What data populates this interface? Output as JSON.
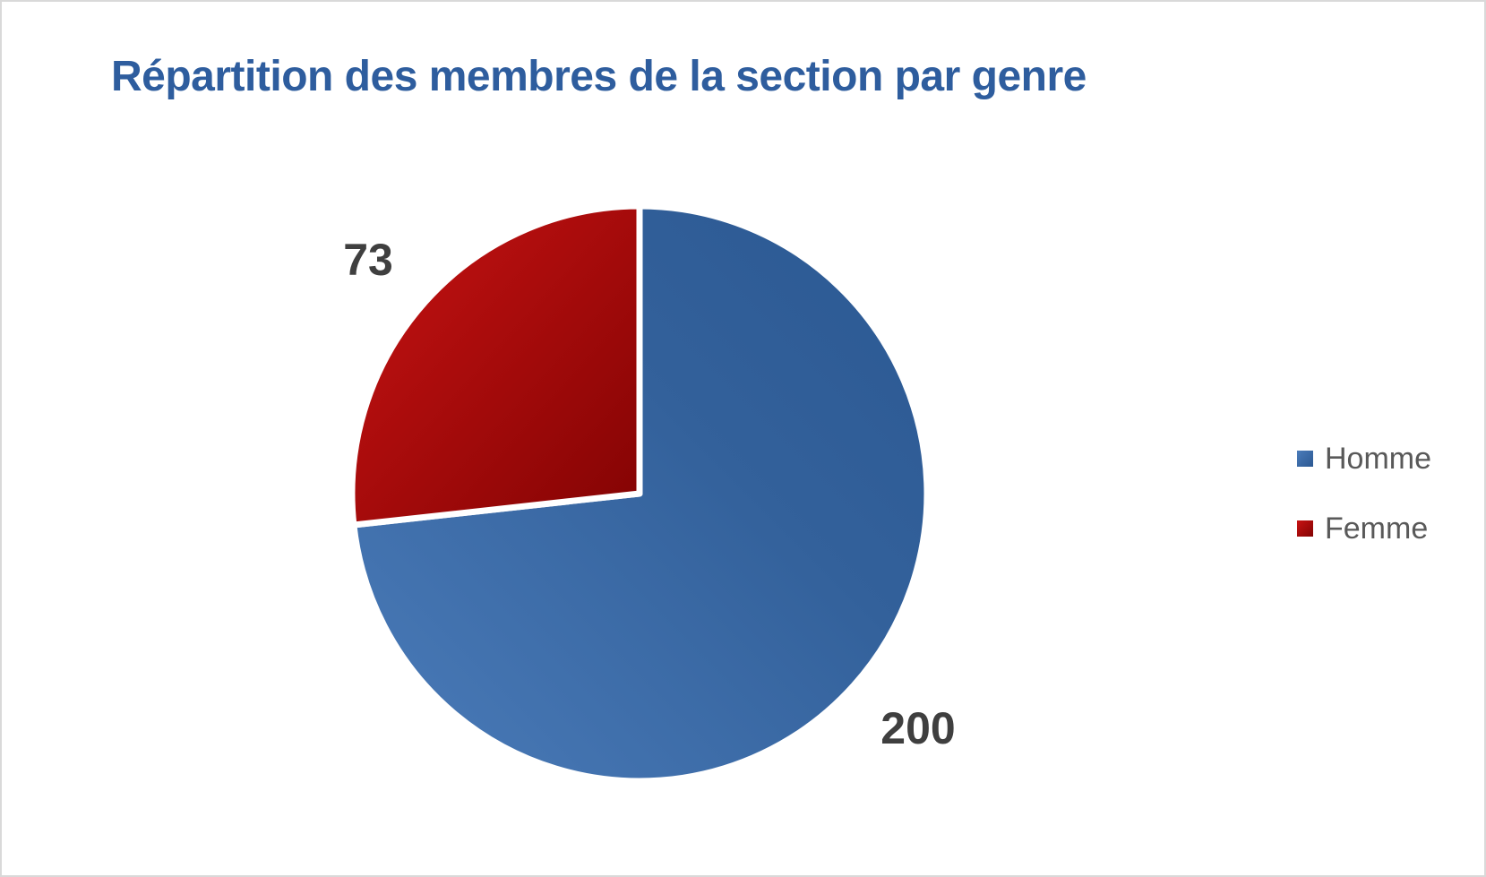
{
  "frame": {
    "background": "#FFFFFF",
    "border_color": "#D9D9D9"
  },
  "chart_data": {
    "type": "pie",
    "title": "Répartition des membres de la section par genre",
    "categories": [
      "Homme",
      "Femme"
    ],
    "values": [
      200,
      73
    ],
    "data_labels": [
      "200",
      "73"
    ],
    "start_angle_deg": 0,
    "direction": "clockwise",
    "legend_position": "right",
    "title_color": "#2E5D9E",
    "data_label_color": "#3F3F3F",
    "legend_text_color": "#595959",
    "colors": [
      "#3A6CA8",
      "#B50A0A"
    ],
    "slice_gradients": [
      {
        "from": "#4B7CBA",
        "to": "#2B5892"
      },
      {
        "from": "#C81313",
        "to": "#830303"
      }
    ],
    "slice_border_color": "#FFFFFF"
  }
}
